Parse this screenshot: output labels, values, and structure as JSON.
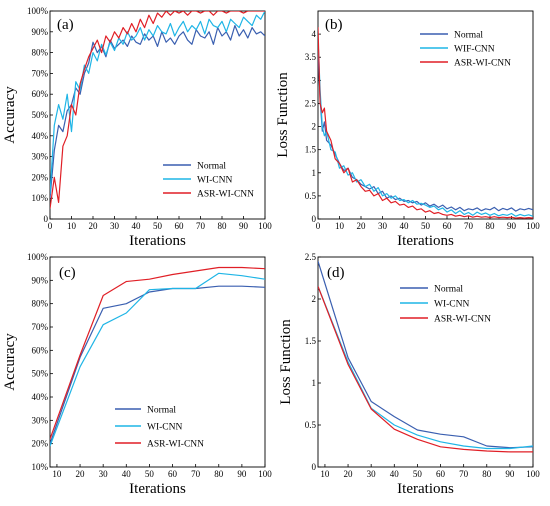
{
  "colors": {
    "normal": "#3a5fb0",
    "wi": "#1fb5e6",
    "asr": "#e01f26"
  },
  "chart_data": [
    {
      "panel": "(a)",
      "type": "line",
      "xlabel": "Iterations",
      "ylabel": "Accuracy",
      "xlim": [
        0,
        100
      ],
      "ylim": [
        0,
        100
      ],
      "y_unit": "%",
      "xticks": [
        0,
        10,
        20,
        30,
        40,
        50,
        60,
        70,
        80,
        90,
        100
      ],
      "yticks": [
        0,
        10,
        20,
        30,
        40,
        50,
        60,
        70,
        80,
        90,
        100
      ],
      "ytick_labels": [
        "0",
        "10%",
        "20%",
        "30%",
        "40%",
        "50%",
        "60%",
        "70%",
        "80%",
        "90%",
        "100%"
      ],
      "legend_position": "bottom-right",
      "series": [
        {
          "name": "Normal",
          "color_key": "normal",
          "x": [
            0,
            2,
            4,
            6,
            8,
            10,
            12,
            14,
            16,
            18,
            20,
            22,
            24,
            26,
            28,
            30,
            32,
            34,
            36,
            38,
            40,
            42,
            44,
            46,
            48,
            50,
            52,
            54,
            56,
            58,
            60,
            62,
            64,
            66,
            68,
            70,
            72,
            74,
            76,
            78,
            80,
            82,
            84,
            86,
            88,
            90,
            92,
            94,
            96,
            98,
            100
          ],
          "y": [
            10,
            33,
            45,
            42,
            52,
            55,
            63,
            60,
            70,
            75,
            85,
            80,
            83,
            78,
            86,
            82,
            84,
            86,
            83,
            88,
            85,
            84,
            89,
            86,
            88,
            83,
            90,
            85,
            87,
            84,
            88,
            90,
            86,
            84,
            91,
            88,
            87,
            90,
            84,
            92,
            88,
            90,
            86,
            93,
            88,
            91,
            87,
            92,
            89,
            90,
            88
          ]
        },
        {
          "name": "WI-CNN",
          "color_key": "wi",
          "x": [
            0,
            2,
            4,
            6,
            8,
            10,
            12,
            14,
            16,
            18,
            20,
            22,
            24,
            26,
            28,
            30,
            32,
            34,
            36,
            38,
            40,
            42,
            44,
            46,
            48,
            50,
            52,
            54,
            56,
            58,
            60,
            62,
            64,
            66,
            68,
            70,
            72,
            74,
            76,
            78,
            80,
            82,
            84,
            86,
            88,
            90,
            92,
            94,
            96,
            98,
            100
          ],
          "y": [
            12,
            45,
            55,
            48,
            60,
            42,
            66,
            62,
            74,
            70,
            80,
            76,
            84,
            79,
            85,
            81,
            87,
            84,
            90,
            86,
            88,
            92,
            86,
            91,
            88,
            93,
            90,
            89,
            94,
            88,
            92,
            95,
            90,
            93,
            91,
            95,
            89,
            96,
            93,
            92,
            95,
            90,
            96,
            94,
            92,
            97,
            95,
            93,
            98,
            96,
            100
          ]
        },
        {
          "name": "ASR-WI-CNN",
          "color_key": "asr",
          "x": [
            0,
            2,
            4,
            6,
            8,
            10,
            12,
            14,
            16,
            18,
            20,
            22,
            24,
            26,
            28,
            30,
            32,
            34,
            36,
            38,
            40,
            42,
            44,
            46,
            48,
            50,
            52,
            54,
            56,
            58,
            60,
            62,
            64,
            66,
            68,
            70,
            72,
            74,
            76,
            78,
            80,
            82,
            84,
            86,
            88,
            90,
            92,
            94,
            96,
            98,
            100
          ],
          "y": [
            5,
            20,
            8,
            35,
            40,
            55,
            50,
            65,
            72,
            78,
            82,
            86,
            80,
            88,
            85,
            90,
            87,
            92,
            89,
            94,
            90,
            96,
            92,
            98,
            94,
            99,
            97,
            100,
            98,
            100,
            99,
            100,
            98,
            100,
            100,
            99,
            100,
            100,
            98,
            100,
            100,
            99,
            100,
            100,
            100,
            99,
            100,
            100,
            100,
            100,
            100
          ]
        }
      ]
    },
    {
      "panel": "(b)",
      "type": "line",
      "xlabel": "Iterations",
      "ylabel": "Loss Function",
      "xlim": [
        0,
        100
      ],
      "ylim": [
        0,
        4.5
      ],
      "xticks": [
        0,
        10,
        20,
        30,
        40,
        50,
        60,
        70,
        80,
        90,
        100
      ],
      "yticks": [
        0,
        0.5,
        1,
        1.5,
        2,
        2.5,
        3,
        3.5,
        4
      ],
      "ytick_labels": [
        "0",
        "0.5",
        "1",
        "1.5",
        "2",
        "2.5",
        "3",
        "3.5",
        "4"
      ],
      "legend_position": "top-right",
      "series": [
        {
          "name": "Normal",
          "color_key": "normal",
          "x": [
            0,
            1,
            2,
            3,
            4,
            6,
            8,
            10,
            12,
            14,
            16,
            18,
            20,
            22,
            24,
            26,
            28,
            30,
            32,
            34,
            36,
            38,
            40,
            42,
            44,
            46,
            48,
            50,
            52,
            54,
            56,
            58,
            60,
            62,
            64,
            66,
            68,
            70,
            72,
            74,
            76,
            78,
            80,
            82,
            84,
            86,
            88,
            90,
            92,
            94,
            96,
            98,
            100
          ],
          "y": [
            3.6,
            2.6,
            1.9,
            2.1,
            1.7,
            1.6,
            1.4,
            1.2,
            1.05,
            1.1,
            0.9,
            0.85,
            0.75,
            0.7,
            0.65,
            0.7,
            0.55,
            0.6,
            0.45,
            0.5,
            0.42,
            0.45,
            0.38,
            0.4,
            0.35,
            0.38,
            0.3,
            0.35,
            0.28,
            0.32,
            0.25,
            0.3,
            0.22,
            0.26,
            0.2,
            0.25,
            0.18,
            0.22,
            0.2,
            0.24,
            0.18,
            0.22,
            0.2,
            0.25,
            0.18,
            0.23,
            0.2,
            0.24,
            0.17,
            0.22,
            0.2,
            0.23,
            0.2
          ]
        },
        {
          "name": "WIF-CNN",
          "color_key": "wi",
          "x": [
            0,
            1,
            2,
            3,
            4,
            6,
            8,
            10,
            12,
            14,
            16,
            18,
            20,
            22,
            24,
            26,
            28,
            30,
            32,
            34,
            36,
            38,
            40,
            42,
            44,
            46,
            48,
            50,
            52,
            54,
            56,
            58,
            60,
            62,
            64,
            66,
            68,
            70,
            72,
            74,
            76,
            78,
            80,
            82,
            84,
            86,
            88,
            90,
            92,
            94,
            96,
            98,
            100
          ],
          "y": [
            3.9,
            2.8,
            2.0,
            1.8,
            1.9,
            1.5,
            1.45,
            1.1,
            1.15,
            0.95,
            1.0,
            0.8,
            0.85,
            0.7,
            0.75,
            0.6,
            0.68,
            0.5,
            0.55,
            0.45,
            0.5,
            0.4,
            0.42,
            0.35,
            0.4,
            0.32,
            0.34,
            0.3,
            0.25,
            0.28,
            0.2,
            0.24,
            0.15,
            0.2,
            0.12,
            0.18,
            0.1,
            0.14,
            0.08,
            0.15,
            0.1,
            0.13,
            0.08,
            0.12,
            0.07,
            0.1,
            0.08,
            0.12,
            0.06,
            0.1,
            0.07,
            0.09,
            0.06
          ]
        },
        {
          "name": "ASR-WI-CNN",
          "color_key": "asr",
          "x": [
            0,
            1,
            2,
            3,
            4,
            6,
            8,
            10,
            12,
            14,
            16,
            18,
            20,
            22,
            24,
            26,
            28,
            30,
            32,
            34,
            36,
            38,
            40,
            42,
            44,
            46,
            48,
            50,
            52,
            54,
            56,
            58,
            60,
            62,
            64,
            66,
            68,
            70,
            72,
            74,
            76,
            78,
            80,
            82,
            84,
            86,
            88,
            90,
            92,
            94,
            96,
            98,
            100
          ],
          "y": [
            4.15,
            2.5,
            2.3,
            2.4,
            1.9,
            1.7,
            1.3,
            1.2,
            1.0,
            1.1,
            0.8,
            0.85,
            0.7,
            0.6,
            0.62,
            0.5,
            0.55,
            0.4,
            0.45,
            0.35,
            0.38,
            0.3,
            0.32,
            0.25,
            0.28,
            0.2,
            0.22,
            0.15,
            0.18,
            0.12,
            0.14,
            0.1,
            0.08,
            0.1,
            0.06,
            0.08,
            0.05,
            0.07,
            0.04,
            0.06,
            0.04,
            0.05,
            0.03,
            0.05,
            0.03,
            0.04,
            0.03,
            0.04,
            0.02,
            0.03,
            0.02,
            0.03,
            0.02
          ]
        }
      ]
    },
    {
      "panel": "(c)",
      "type": "line",
      "xlabel": "Iterations",
      "ylabel": "Accuracy",
      "xlim": [
        7,
        100
      ],
      "ylim": [
        10,
        100
      ],
      "y_unit": "%",
      "xticks": [
        10,
        20,
        30,
        40,
        50,
        60,
        70,
        80,
        90,
        100
      ],
      "yticks": [
        10,
        20,
        30,
        40,
        50,
        60,
        70,
        80,
        90,
        100
      ],
      "ytick_labels": [
        "10%",
        "20%",
        "30%",
        "40%",
        "50%",
        "60%",
        "70%",
        "80%",
        "90%",
        "100%"
      ],
      "legend_position": "bottom-center",
      "series": [
        {
          "name": "Normal",
          "color_key": "normal",
          "x": [
            7,
            20,
            30,
            40,
            50,
            60,
            70,
            80,
            90,
            100
          ],
          "y": [
            20,
            57,
            78,
            80,
            85,
            86.5,
            86.5,
            87.5,
            87.5,
            87
          ]
        },
        {
          "name": "WI-CNN",
          "color_key": "wi",
          "x": [
            7,
            20,
            30,
            40,
            50,
            60,
            70,
            80,
            90,
            100
          ],
          "y": [
            19,
            53,
            71,
            76,
            86,
            86.5,
            86.5,
            93,
            92,
            90.5
          ]
        },
        {
          "name": "ASR-WI-CNN",
          "color_key": "asr",
          "x": [
            7,
            20,
            30,
            40,
            50,
            60,
            70,
            80,
            90,
            100
          ],
          "y": [
            22,
            58,
            83.5,
            89.5,
            90.5,
            92.5,
            94,
            95.5,
            95.5,
            95
          ]
        }
      ]
    },
    {
      "panel": "(d)",
      "type": "line",
      "xlabel": "Iterations",
      "ylabel": "Loss Function",
      "xlim": [
        7,
        100
      ],
      "ylim": [
        0,
        2.5
      ],
      "xticks": [
        10,
        20,
        30,
        40,
        50,
        60,
        70,
        80,
        90,
        100
      ],
      "yticks": [
        0,
        0.5,
        1,
        1.5,
        2,
        2.5
      ],
      "ytick_labels": [
        "0",
        "0.5",
        "1",
        "1.5",
        "2",
        "2.5"
      ],
      "legend_position": "top-right",
      "series": [
        {
          "name": "Normal",
          "color_key": "normal",
          "x": [
            7,
            20,
            30,
            40,
            50,
            60,
            70,
            80,
            90,
            100
          ],
          "y": [
            2.45,
            1.3,
            0.78,
            0.6,
            0.44,
            0.39,
            0.36,
            0.25,
            0.23,
            0.24
          ]
        },
        {
          "name": "WI-CNN",
          "color_key": "wi",
          "x": [
            7,
            20,
            30,
            40,
            50,
            60,
            70,
            80,
            90,
            100
          ],
          "y": [
            2.15,
            1.25,
            0.7,
            0.5,
            0.38,
            0.3,
            0.25,
            0.22,
            0.22,
            0.25
          ]
        },
        {
          "name": "ASR-WI-CNN",
          "color_key": "asr",
          "x": [
            7,
            20,
            30,
            40,
            50,
            60,
            70,
            80,
            90,
            100
          ],
          "y": [
            2.15,
            1.22,
            0.69,
            0.45,
            0.33,
            0.24,
            0.21,
            0.19,
            0.18,
            0.18
          ]
        }
      ]
    }
  ]
}
